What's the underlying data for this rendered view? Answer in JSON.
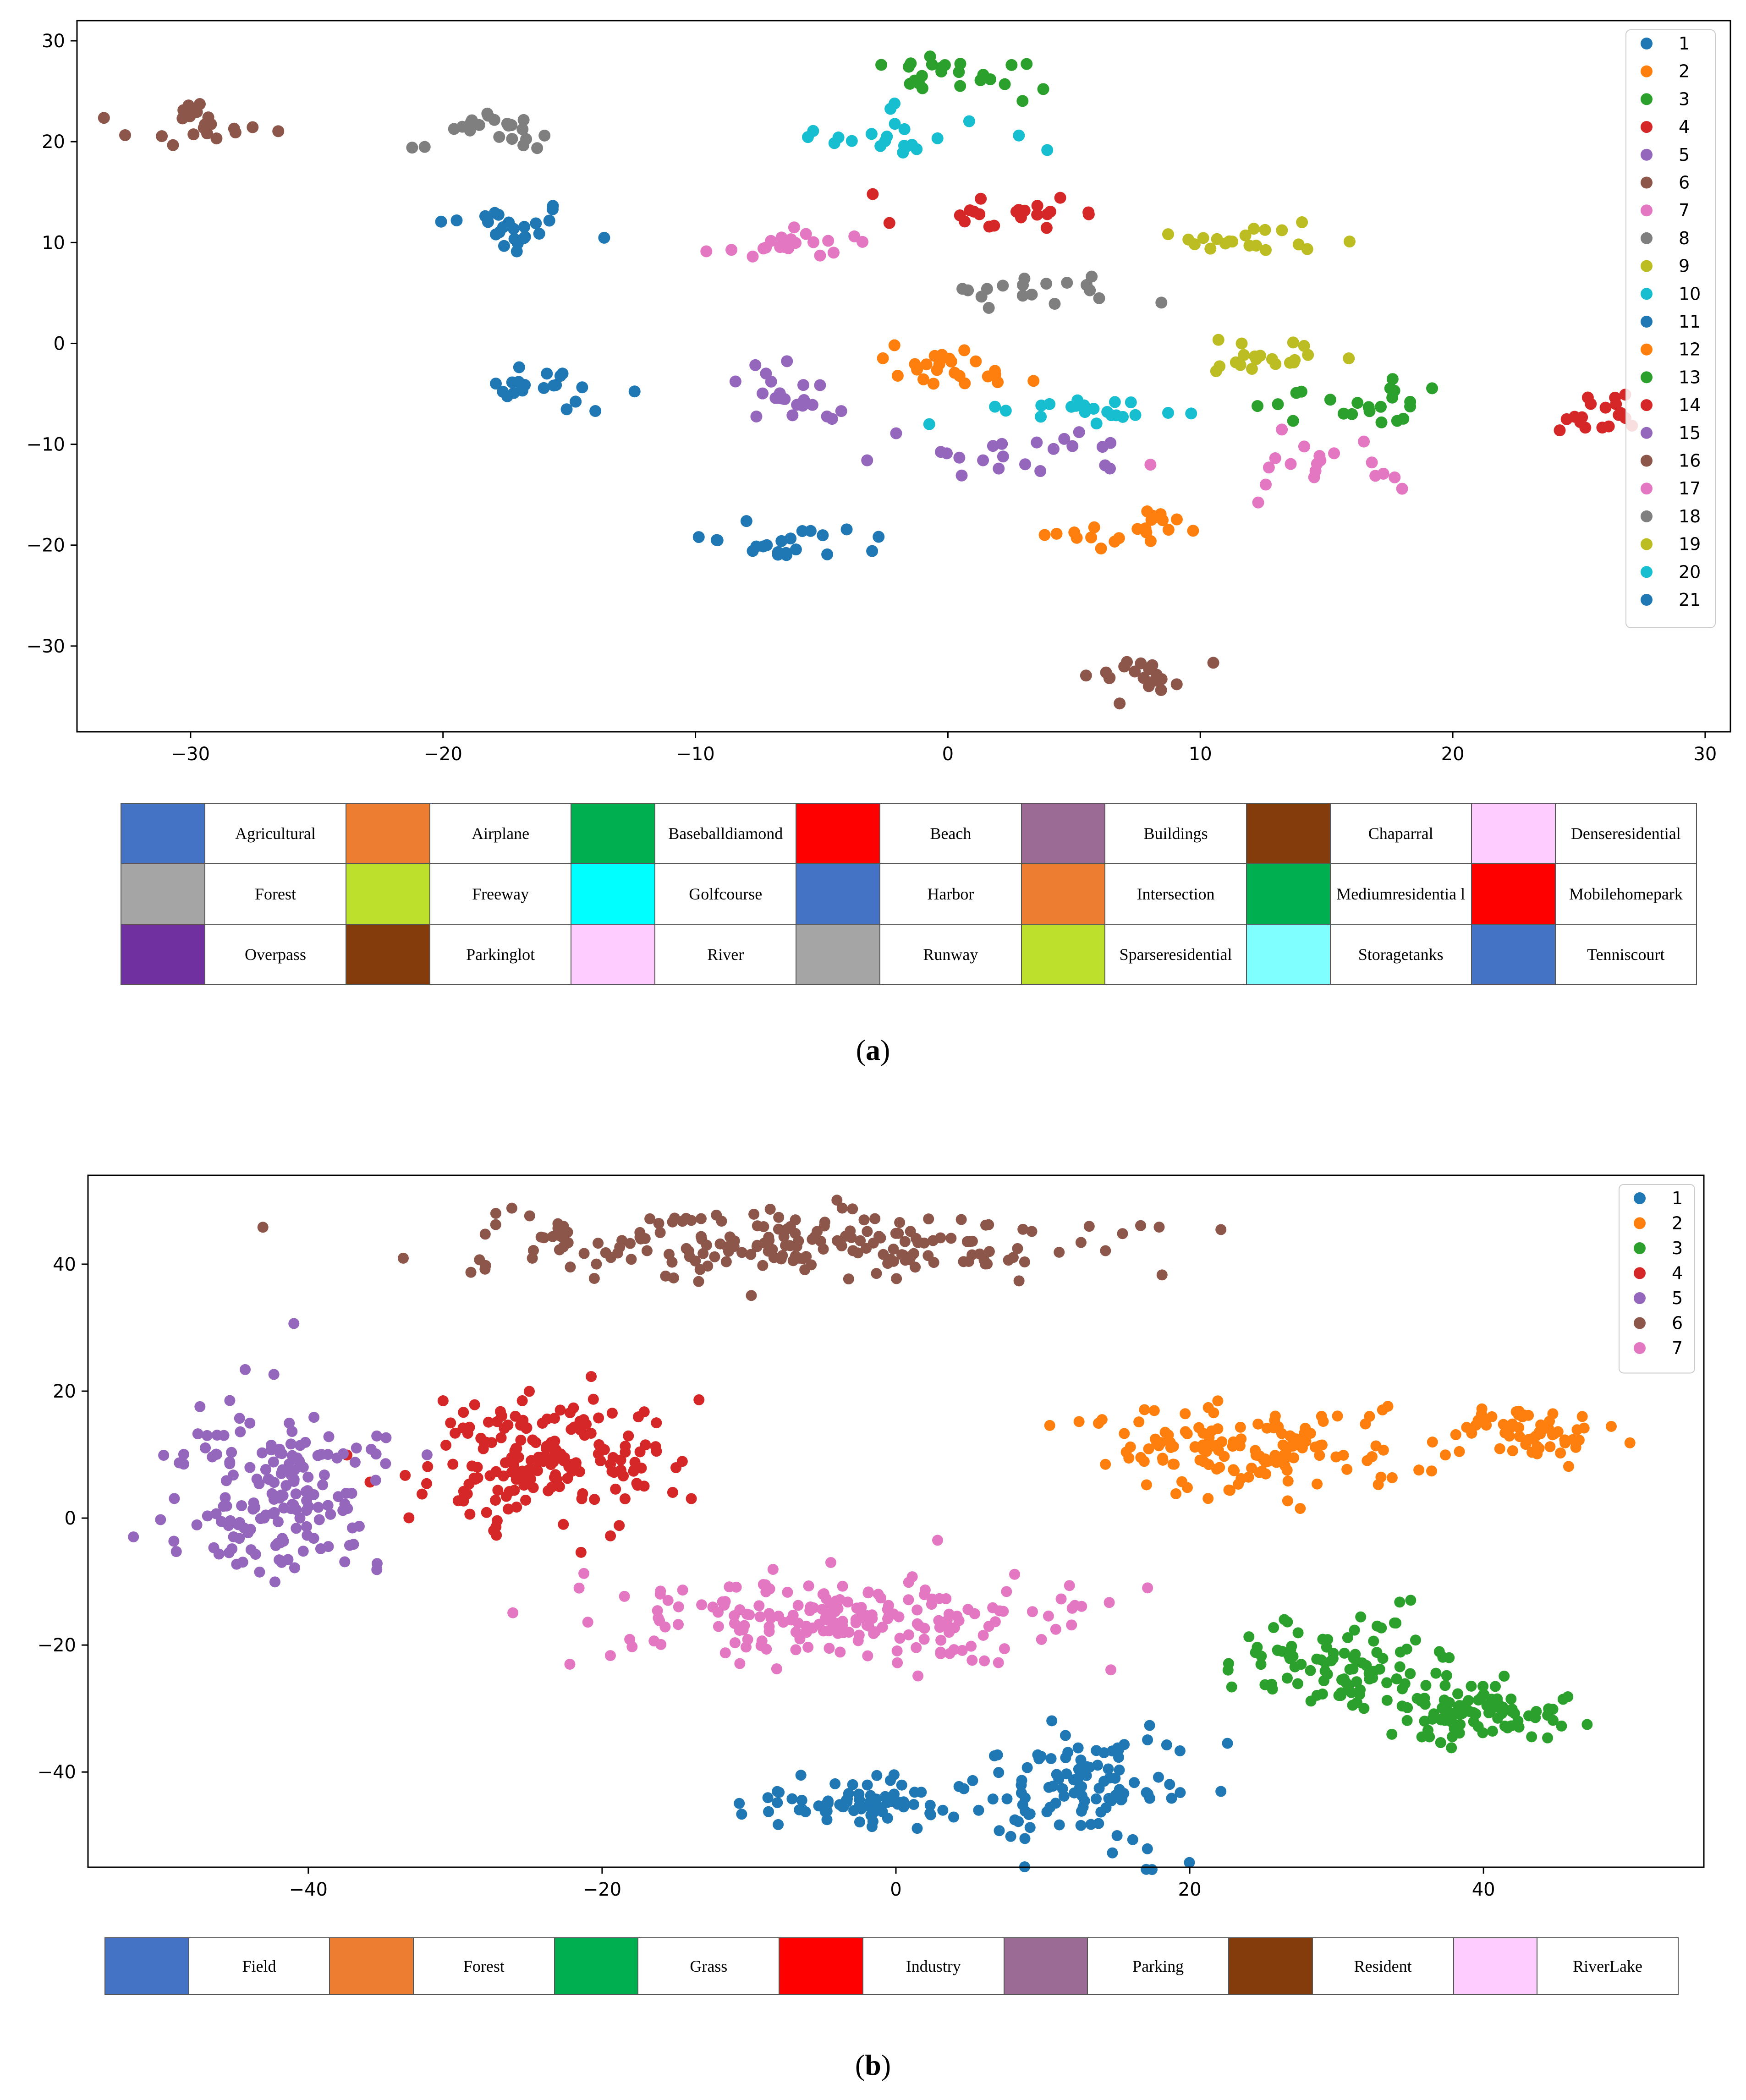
{
  "chart_data": [
    {
      "type": "scatter",
      "panel": "(a)",
      "title": "",
      "xlabel": "",
      "ylabel": "",
      "xlim": [
        -34.5,
        31
      ],
      "ylim": [
        -38.5,
        32
      ],
      "xticks": [
        "−30",
        "−20",
        "−10",
        "0",
        "10",
        "20",
        "30"
      ],
      "xtick_values": [
        -30,
        -20,
        -10,
        0,
        10,
        20,
        30
      ],
      "yticks": [
        "30",
        "20",
        "10",
        "0",
        "−10",
        "−20",
        "−30"
      ],
      "ytick_values": [
        30,
        20,
        10,
        0,
        -10,
        -20,
        -30
      ],
      "legend_position": "top-right",
      "series": [
        {
          "name": "1",
          "color": "#1f77b4",
          "cx": -17.5,
          "cy": 11.5,
          "sx": 1.4,
          "sy": 1.4,
          "n": 24
        },
        {
          "name": "2",
          "color": "#ff7f0e",
          "cx": 0.0,
          "cy": -2.5,
          "sx": 1.8,
          "sy": 1.0,
          "n": 24
        },
        {
          "name": "3",
          "color": "#2ca02c",
          "cx": 0.5,
          "cy": 27.0,
          "sx": 1.8,
          "sy": 1.0,
          "n": 24
        },
        {
          "name": "4",
          "color": "#d62728",
          "cx": 2.0,
          "cy": 13.0,
          "sx": 2.5,
          "sy": 1.0,
          "n": 22
        },
        {
          "name": "5",
          "color": "#9467bd",
          "cx": -6.5,
          "cy": -5.0,
          "sx": 1.1,
          "sy": 1.4,
          "n": 22
        },
        {
          "name": "6",
          "color": "#8c564b",
          "cx": -29.5,
          "cy": 22.0,
          "sx": 1.6,
          "sy": 1.0,
          "n": 22
        },
        {
          "name": "7",
          "color": "#e377c2",
          "cx": -6.5,
          "cy": 9.5,
          "sx": 1.7,
          "sy": 1.0,
          "n": 20
        },
        {
          "name": "8",
          "color": "#7f7f7f",
          "cx": 3.5,
          "cy": 5.0,
          "sx": 2.2,
          "sy": 0.8,
          "n": 18
        },
        {
          "name": "9",
          "color": "#bcbd22",
          "cx": 12.0,
          "cy": 10.5,
          "sx": 2.0,
          "sy": 0.9,
          "n": 20
        },
        {
          "name": "10",
          "color": "#17becf",
          "cx": -2.0,
          "cy": 20.5,
          "sx": 1.7,
          "sy": 1.2,
          "n": 22
        },
        {
          "name": "11",
          "color": "#1f77b4",
          "cx": -15.5,
          "cy": -4.5,
          "sx": 1.6,
          "sy": 1.0,
          "n": 22
        },
        {
          "name": "12",
          "color": "#ff7f0e",
          "cx": 7.0,
          "cy": -18.5,
          "sx": 1.7,
          "sy": 1.0,
          "n": 22
        },
        {
          "name": "13",
          "color": "#2ca02c",
          "cx": 16.0,
          "cy": -6.0,
          "sx": 1.8,
          "sy": 1.1,
          "n": 22
        },
        {
          "name": "14",
          "color": "#d62728",
          "cx": 25.8,
          "cy": -7.0,
          "sx": 1.0,
          "sy": 1.1,
          "n": 18
        },
        {
          "name": "15",
          "color": "#9467bd",
          "cx": 2.5,
          "cy": -11.0,
          "sx": 2.5,
          "sy": 1.3,
          "n": 22
        },
        {
          "name": "16",
          "color": "#8c564b",
          "cx": 7.5,
          "cy": -33.0,
          "sx": 1.2,
          "sy": 1.2,
          "n": 20
        },
        {
          "name": "17",
          "color": "#e377c2",
          "cx": 14.0,
          "cy": -12.0,
          "sx": 2.2,
          "sy": 1.5,
          "n": 20
        },
        {
          "name": "18",
          "color": "#7f7f7f",
          "cx": -18.0,
          "cy": 21.5,
          "sx": 1.3,
          "sy": 1.0,
          "n": 24
        },
        {
          "name": "19",
          "color": "#bcbd22",
          "cx": 12.5,
          "cy": -1.5,
          "sx": 1.7,
          "sy": 1.2,
          "n": 20
        },
        {
          "name": "20",
          "color": "#17becf",
          "cx": 5.5,
          "cy": -6.5,
          "sx": 1.8,
          "sy": 1.1,
          "n": 22
        },
        {
          "name": "21",
          "color": "#1f77b4",
          "cx": -6.5,
          "cy": -20.0,
          "sx": 1.8,
          "sy": 1.0,
          "n": 22
        }
      ]
    },
    {
      "type": "scatter",
      "panel": "(b)",
      "title": "",
      "xlabel": "",
      "ylabel": "",
      "xlim": [
        -55,
        55
      ],
      "ylim": [
        -55,
        54
      ],
      "xticks": [
        "−40",
        "−20",
        "0",
        "20",
        "40"
      ],
      "xtick_values": [
        -40,
        -20,
        0,
        20,
        40
      ],
      "yticks": [
        "40",
        "20",
        "0",
        "−20",
        "−40"
      ],
      "ytick_values": [
        40,
        20,
        0,
        -20,
        -40
      ],
      "legend_position": "top-right",
      "series": [
        {
          "name": "1",
          "color": "#1f77b4",
          "clusters": [
            {
              "cx": -3.0,
              "cy": -45.0,
              "sx": 3.5,
              "sy": 2.0,
              "n": 70
            },
            {
              "cx": 13.0,
              "cy": -42.0,
              "sx": 4.0,
              "sy": 4.5,
              "n": 110
            }
          ]
        },
        {
          "name": "2",
          "color": "#ff7f0e",
          "clusters": [
            {
              "cx": 24.0,
              "cy": 11.0,
              "sx": 5.0,
              "sy": 3.5,
              "n": 140
            },
            {
              "cx": 43.0,
              "cy": 14.0,
              "sx": 2.8,
              "sy": 2.3,
              "n": 60
            }
          ]
        },
        {
          "name": "3",
          "color": "#2ca02c",
          "clusters": [
            {
              "cx": 30.0,
              "cy": -23.0,
              "sx": 3.5,
              "sy": 3.5,
              "n": 90
            },
            {
              "cx": 39.0,
              "cy": -30.0,
              "sx": 3.5,
              "sy": 2.5,
              "n": 100
            }
          ]
        },
        {
          "name": "4",
          "color": "#d62728",
          "clusters": [
            {
              "cx": -24.0,
              "cy": 9.0,
              "sx": 5.0,
              "sy": 5.0,
              "n": 180
            }
          ]
        },
        {
          "name": "5",
          "color": "#9467bd",
          "clusters": [
            {
              "cx": -42.0,
              "cy": 5.0,
              "sx": 4.0,
              "sy": 6.5,
              "n": 170
            }
          ]
        },
        {
          "name": "6",
          "color": "#8c564b",
          "clusters": [
            {
              "cx": -8.0,
              "cy": 43.0,
              "sx": 11.0,
              "sy": 2.8,
              "n": 200
            }
          ]
        },
        {
          "name": "7",
          "color": "#e377c2",
          "clusters": [
            {
              "cx": -4.0,
              "cy": -16.0,
              "sx": 8.0,
              "sy": 3.5,
              "n": 200
            }
          ]
        }
      ]
    }
  ],
  "table_a": {
    "rows": [
      [
        {
          "label": "Agricultural",
          "color": "#4472c4"
        },
        {
          "label": "Airplane",
          "color": "#ed7d31"
        },
        {
          "label": "Baseballdiamond",
          "color": "#00b050"
        },
        {
          "label": "Beach",
          "color": "#ff0000"
        },
        {
          "label": "Buildings",
          "color": "#9b6b95"
        },
        {
          "label": "Chaparral",
          "color": "#843c0c"
        },
        {
          "label": "Denseresidential",
          "color": "#ffccff"
        }
      ],
      [
        {
          "label": "Forest",
          "color": "#a5a5a5"
        },
        {
          "label": "Freeway",
          "color": "#bde02c"
        },
        {
          "label": "Golfcourse",
          "color": "#00ffff"
        },
        {
          "label": "Harbor",
          "color": "#4472c4"
        },
        {
          "label": "Intersection",
          "color": "#ed7d31"
        },
        {
          "label": "Mediumresidentia l",
          "color": "#00b050"
        },
        {
          "label": "Mobilehomepark",
          "color": "#ff0000"
        }
      ],
      [
        {
          "label": "Overpass",
          "color": "#7030a0"
        },
        {
          "label": "Parkinglot",
          "color": "#843c0c"
        },
        {
          "label": "River",
          "color": "#ffccff"
        },
        {
          "label": "Runway",
          "color": "#a5a5a5"
        },
        {
          "label": "Sparseresidential",
          "color": "#bde02c"
        },
        {
          "label": "Storagetanks",
          "color": "#7fffff"
        },
        {
          "label": "Tenniscourt",
          "color": "#4472c4"
        }
      ]
    ]
  },
  "table_b": {
    "row": [
      {
        "label": "Field",
        "color": "#4472c4"
      },
      {
        "label": "Forest",
        "color": "#ed7d31"
      },
      {
        "label": "Grass",
        "color": "#00b050"
      },
      {
        "label": "Industry",
        "color": "#ff0000"
      },
      {
        "label": "Parking",
        "color": "#9b6b95"
      },
      {
        "label": "Resident",
        "color": "#843c0c"
      },
      {
        "label": "RiverLake",
        "color": "#ffccff"
      }
    ]
  },
  "captions": {
    "a_open": "(",
    "a_letter": "a",
    "a_close": ")",
    "b_open": "(",
    "b_letter": "b",
    "b_close": ")"
  }
}
